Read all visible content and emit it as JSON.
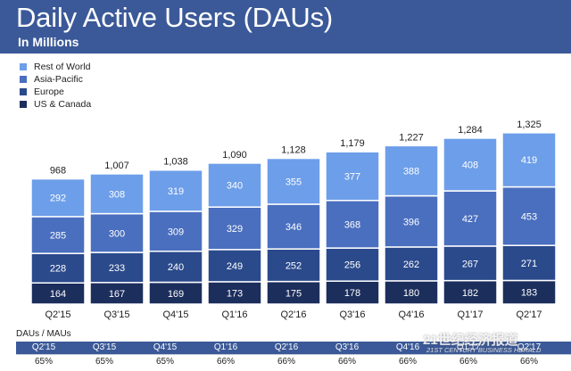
{
  "header": {
    "title": "Daily Active Users (DAUs)",
    "subtitle": "In Millions"
  },
  "legend": [
    {
      "label": "Rest of World",
      "color": "#6d9ee9"
    },
    {
      "label": "Asia-Pacific",
      "color": "#4a6fbf"
    },
    {
      "label": "Europe",
      "color": "#2b4a8c"
    },
    {
      "label": "US & Canada",
      "color": "#1c2e5c"
    }
  ],
  "chart_data": {
    "type": "bar",
    "stacked": true,
    "title": "Daily Active Users (DAUs)",
    "subtitle": "In Millions",
    "categories": [
      "Q2'15",
      "Q3'15",
      "Q4'15",
      "Q1'16",
      "Q2'16",
      "Q3'16",
      "Q4'16",
      "Q1'17",
      "Q2'17"
    ],
    "series": [
      {
        "name": "US & Canada",
        "color": "#1c2e5c",
        "values": [
          164,
          167,
          169,
          173,
          175,
          178,
          180,
          182,
          183
        ]
      },
      {
        "name": "Europe",
        "color": "#2b4a8c",
        "values": [
          228,
          233,
          240,
          249,
          252,
          256,
          262,
          267,
          271
        ]
      },
      {
        "name": "Asia-Pacific",
        "color": "#4a6fbf",
        "values": [
          285,
          300,
          309,
          329,
          346,
          368,
          396,
          427,
          453
        ]
      },
      {
        "name": "Rest of World",
        "color": "#6d9ee9",
        "values": [
          292,
          308,
          319,
          340,
          355,
          377,
          388,
          408,
          419
        ]
      }
    ],
    "totals": [
      "968",
      "1,007",
      "1,038",
      "1,090",
      "1,128",
      "1,179",
      "1,227",
      "1,284",
      "1,325"
    ],
    "ylim": [
      0,
      1325
    ],
    "legend_position": "top-left",
    "grid": false
  },
  "dau_mau": {
    "label": "DAUs / MAUs",
    "quarters": [
      "Q2'15",
      "Q3'15",
      "Q4'15",
      "Q1'16",
      "Q2'16",
      "Q3'16",
      "Q4'16",
      "Q1'17",
      "Q2'17"
    ],
    "values": [
      "65%",
      "65%",
      "65%",
      "66%",
      "66%",
      "66%",
      "66%",
      "66%",
      "66%"
    ]
  },
  "watermark": {
    "line1": "21世纪经济报道",
    "line2": "21ST CENTURY BUSINESS HERALD"
  }
}
